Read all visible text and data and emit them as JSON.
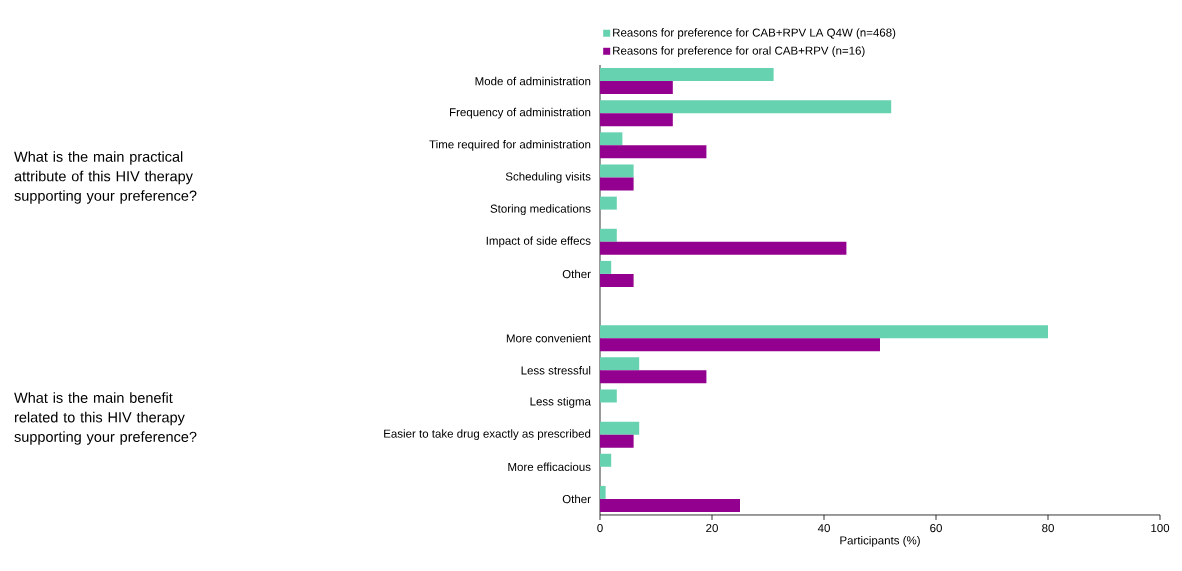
{
  "chart_data": {
    "type": "bar",
    "orientation": "horizontal",
    "xlabel": "Participants (%)",
    "categories": [
      "Mode of administration",
      "Frequency of administration",
      "Time required for administration",
      "Scheduling visits",
      "Storing medications",
      "Impact of side effecs",
      "Other",
      null,
      "More convenient",
      "Less stressful",
      "Less stigma",
      "Easier to take drug exactly as prescribed",
      "More efficacious",
      "Other"
    ],
    "series": [
      {
        "name": "Reasons for preference for CAB+RPV LA Q4W (n=468)",
        "color": "#66d2b0",
        "values": [
          31,
          52,
          4,
          6,
          3,
          3,
          2,
          null,
          80,
          7,
          3,
          7,
          2,
          1
        ]
      },
      {
        "name": "Reasons for preference for oral CAB+RPV (n=16)",
        "color": "#93008f",
        "values": [
          13,
          13,
          19,
          6,
          0,
          44,
          6,
          null,
          50,
          19,
          0,
          6,
          0,
          25
        ]
      }
    ],
    "xlim": [
      0,
      100
    ],
    "xticks": [
      0,
      20,
      40,
      60,
      80,
      100
    ],
    "grid": false,
    "legend": "top",
    "annotations": [
      "What is the main practical attribute of this HIV therapy supporting your preference?",
      "What is the main benefit related to this HIV therapy supporting your preference?"
    ]
  }
}
